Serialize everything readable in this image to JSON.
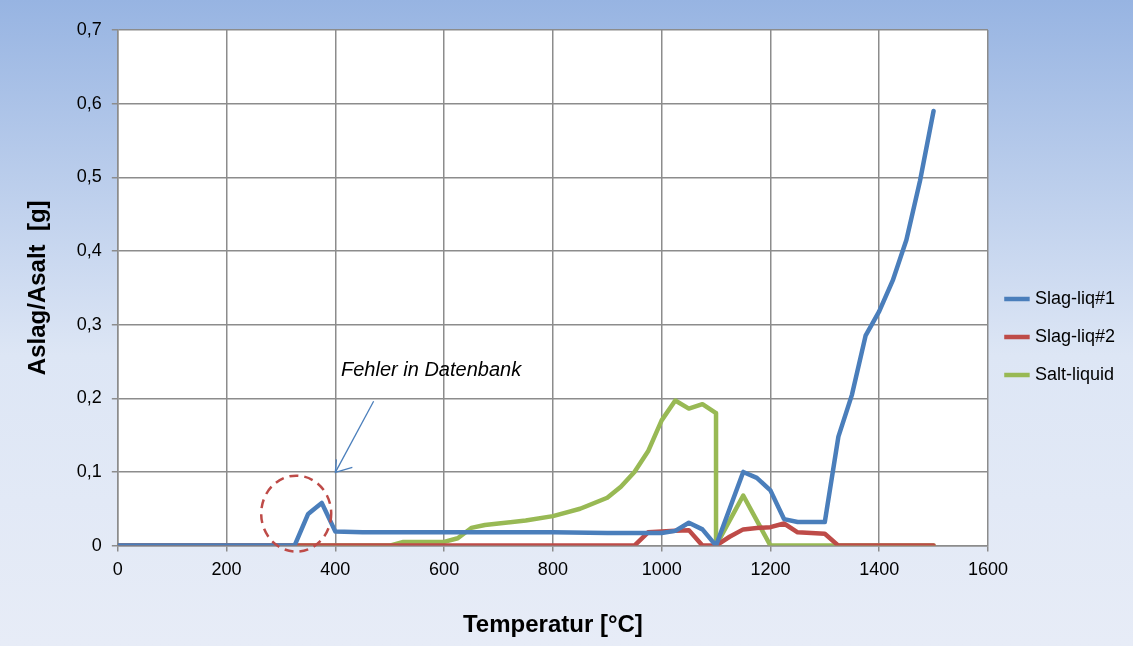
{
  "chart_data": {
    "type": "line",
    "xlabel": "Temperatur [°C]",
    "ylabel": "Aslag/Asalt  [g]",
    "xlim": [
      0,
      1600
    ],
    "xticks": [
      0,
      200,
      400,
      600,
      800,
      1000,
      1200,
      1400,
      1600
    ],
    "ylim": [
      0,
      0.7
    ],
    "yticks": [
      {
        "value": 0,
        "label": "0"
      },
      {
        "value": 0.1,
        "label": "0,1"
      },
      {
        "value": 0.2,
        "label": "0,2"
      },
      {
        "value": 0.3,
        "label": "0,3"
      },
      {
        "value": 0.4,
        "label": "0,4"
      },
      {
        "value": 0.5,
        "label": "0,5"
      },
      {
        "value": 0.6,
        "label": "0,6"
      },
      {
        "value": 0.7,
        "label": "0,7"
      }
    ],
    "grid": true,
    "legend": "right",
    "marker": "none",
    "line_style": "solid",
    "annotations": [
      "Fehler in Datenbank"
    ],
    "series": [
      {
        "name": "Slag-liq#1",
        "color": "#4a7ebb",
        "x": [
          0,
          325,
          350,
          375,
          400,
          450,
          500,
          600,
          700,
          800,
          900,
          1000,
          1025,
          1050,
          1075,
          1100,
          1125,
          1150,
          1175,
          1200,
          1225,
          1250,
          1275,
          1300,
          1325,
          1350,
          1375,
          1400,
          1425,
          1450,
          1475,
          1500
        ],
        "values": [
          0,
          0,
          0.043,
          0.058,
          0.019,
          0.018,
          0.018,
          0.018,
          0.018,
          0.018,
          0.017,
          0.017,
          0.02,
          0.031,
          0.022,
          0,
          0.05,
          0.1,
          0.092,
          0.075,
          0.036,
          0.032,
          0.032,
          0.032,
          0.148,
          0.205,
          0.285,
          0.318,
          0.36,
          0.415,
          0.495,
          0.59
        ]
      },
      {
        "name": "Slag-liq#2",
        "color": "#be4b48",
        "x": [
          0,
          950,
          975,
          1000,
          1025,
          1050,
          1075,
          1100,
          1125,
          1150,
          1175,
          1200,
          1225,
          1250,
          1275,
          1300,
          1325,
          1500
        ],
        "values": [
          0,
          0,
          0.018,
          0.019,
          0.02,
          0.021,
          0,
          0,
          0.012,
          0.022,
          0.024,
          0.025,
          0.03,
          0.018,
          0.017,
          0.016,
          0,
          0
        ]
      },
      {
        "name": "Salt-liquid",
        "color": "#98b954",
        "x": [
          0,
          500,
          525,
          600,
          625,
          650,
          675,
          700,
          750,
          800,
          850,
          900,
          925,
          950,
          975,
          1000,
          1025,
          1050,
          1075,
          1100,
          1100,
          1150,
          1200,
          1250,
          1300,
          1400,
          1500
        ],
        "values": [
          0,
          0,
          0.005,
          0.005,
          0.01,
          0.024,
          0.028,
          0.03,
          0.034,
          0.04,
          0.05,
          0.065,
          0.08,
          0.1,
          0.128,
          0.17,
          0.197,
          0.186,
          0.192,
          0.18,
          0,
          0.068,
          0,
          0,
          0,
          0,
          0
        ]
      }
    ]
  }
}
